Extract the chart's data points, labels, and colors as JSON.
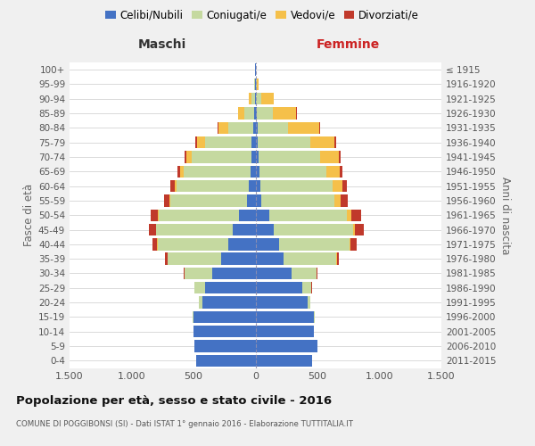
{
  "age_groups": [
    "0-4",
    "5-9",
    "10-14",
    "15-19",
    "20-24",
    "25-29",
    "30-34",
    "35-39",
    "40-44",
    "45-49",
    "50-54",
    "55-59",
    "60-64",
    "65-69",
    "70-74",
    "75-79",
    "80-84",
    "85-89",
    "90-94",
    "95-99",
    "100+"
  ],
  "birth_years": [
    "2011-2015",
    "2006-2010",
    "2001-2005",
    "1996-2000",
    "1991-1995",
    "1986-1990",
    "1981-1985",
    "1976-1980",
    "1971-1975",
    "1966-1970",
    "1961-1965",
    "1956-1960",
    "1951-1955",
    "1946-1950",
    "1941-1945",
    "1936-1940",
    "1931-1935",
    "1926-1930",
    "1921-1925",
    "1916-1920",
    "≤ 1915"
  ],
  "colors": {
    "celibe": "#4472c4",
    "coniugato": "#c5d9a0",
    "vedovo": "#f5c04a",
    "divorziato": "#c0392b"
  },
  "maschi": {
    "celibe": [
      480,
      490,
      500,
      500,
      430,
      410,
      350,
      280,
      220,
      180,
      130,
      65,
      55,
      40,
      35,
      30,
      20,
      10,
      5,
      3,
      2
    ],
    "coniugato": [
      0,
      0,
      0,
      5,
      25,
      80,
      220,
      430,
      570,
      620,
      650,
      620,
      580,
      540,
      480,
      380,
      200,
      80,
      25,
      5,
      0
    ],
    "vedovo": [
      0,
      0,
      0,
      0,
      0,
      1,
      1,
      2,
      3,
      5,
      8,
      10,
      15,
      25,
      40,
      60,
      80,
      50,
      25,
      5,
      0
    ],
    "divorziato": [
      0,
      0,
      0,
      0,
      1,
      3,
      8,
      20,
      40,
      55,
      60,
      40,
      35,
      25,
      20,
      15,
      5,
      3,
      0,
      0,
      0
    ]
  },
  "femmine": {
    "nubile": [
      460,
      500,
      470,
      470,
      420,
      380,
      290,
      230,
      190,
      150,
      110,
      50,
      40,
      30,
      25,
      20,
      15,
      10,
      5,
      3,
      2
    ],
    "coniugata": [
      0,
      0,
      0,
      5,
      20,
      70,
      200,
      420,
      570,
      640,
      630,
      590,
      580,
      540,
      500,
      420,
      250,
      130,
      40,
      5,
      0
    ],
    "vedova": [
      0,
      0,
      0,
      0,
      0,
      1,
      2,
      5,
      8,
      15,
      30,
      50,
      80,
      110,
      150,
      200,
      250,
      190,
      100,
      20,
      0
    ],
    "divorziata": [
      0,
      0,
      0,
      0,
      1,
      3,
      10,
      20,
      45,
      70,
      80,
      55,
      35,
      20,
      15,
      10,
      5,
      3,
      0,
      0,
      0
    ]
  },
  "title": "Popolazione per età, sesso e stato civile - 2016",
  "subtitle": "COMUNE DI POGGIBONSI (SI) - Dati ISTAT 1° gennaio 2016 - Elaborazione TUTTITALIA.IT",
  "xlabel_left": "Maschi",
  "xlabel_right": "Femmine",
  "ylabel_left": "Fasce di età",
  "ylabel_right": "Anni di nascita",
  "xlim": 1500,
  "legend_labels": [
    "Celibi/Nubili",
    "Coniugati/e",
    "Vedovi/e",
    "Divorziati/e"
  ],
  "bg_color": "#f0f0f0",
  "plot_bg": "#ffffff"
}
